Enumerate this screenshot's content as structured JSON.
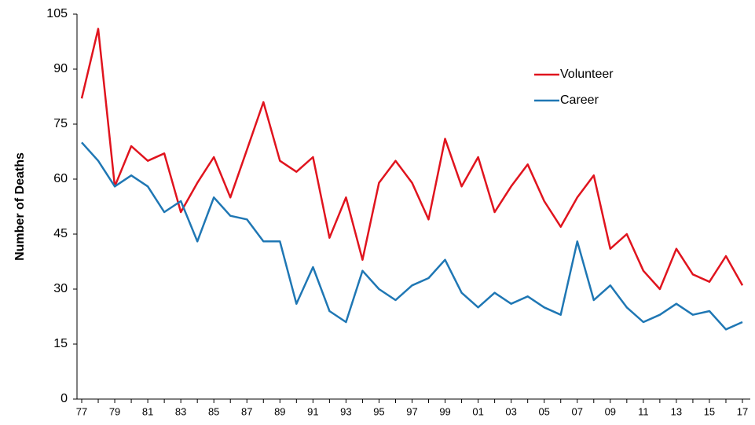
{
  "chart_data": {
    "type": "line",
    "y_label": "Number of Deaths",
    "categories": [
      "77",
      null,
      "79",
      null,
      "81",
      null,
      "83",
      null,
      "85",
      null,
      "87",
      null,
      "89",
      null,
      "91",
      null,
      "93",
      null,
      "95",
      null,
      "97",
      null,
      "99",
      null,
      "01",
      null,
      "03",
      null,
      "05",
      null,
      "07",
      null,
      "09",
      null,
      "11",
      null,
      "13",
      null,
      "15",
      null,
      "17"
    ],
    "series": [
      {
        "name": "Volunteer",
        "color": "#e0141e",
        "values": [
          82,
          101,
          58,
          69,
          65,
          67,
          51,
          59,
          66,
          55,
          68,
          81,
          65,
          62,
          66,
          44,
          55,
          38,
          59,
          65,
          59,
          49,
          71,
          58,
          66,
          51,
          58,
          64,
          54,
          47,
          55,
          61,
          41,
          45,
          35,
          30,
          41,
          34,
          32,
          39,
          31
        ]
      },
      {
        "name": "Career",
        "color": "#1f77b4",
        "values": [
          70,
          65,
          58,
          61,
          58,
          51,
          54,
          43,
          55,
          50,
          49,
          43,
          43,
          26,
          36,
          24,
          21,
          35,
          30,
          27,
          31,
          33,
          38,
          29,
          25,
          29,
          26,
          28,
          25,
          23,
          43,
          27,
          31,
          25,
          21,
          23,
          26,
          23,
          24,
          19,
          21
        ]
      }
    ],
    "ylim": [
      0,
      105
    ],
    "yticks": [
      0,
      15,
      30,
      45,
      60,
      75,
      90,
      105
    ],
    "legend": "upper right"
  }
}
